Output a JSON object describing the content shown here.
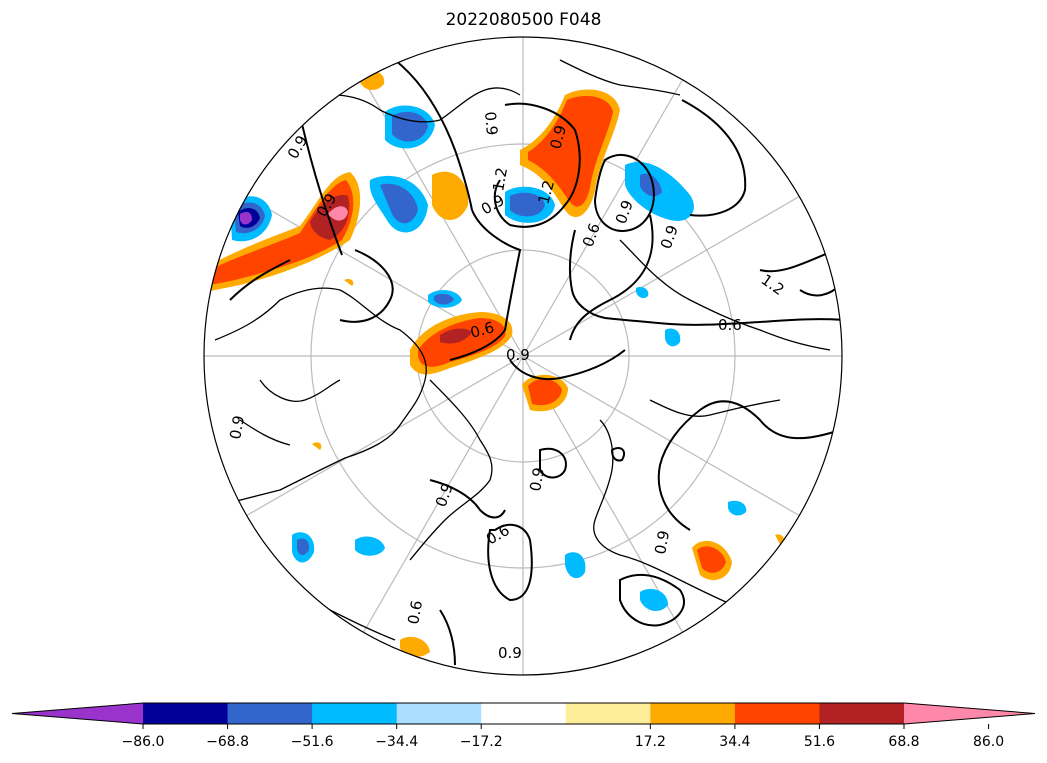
{
  "title": "2022080500 F048",
  "colorbar": {
    "colors": [
      "#9933cc",
      "#000099",
      "#3366cc",
      "#00bbff",
      "#aaddff",
      "#ffffff",
      "#ffee99",
      "#ffaa00",
      "#ff4400",
      "#b22222",
      "#ff88aa"
    ],
    "tick_labels": [
      "−86.0",
      "−68.8",
      "−51.6",
      "−34.4",
      "−17.2",
      "17.2",
      "34.4",
      "51.6",
      "68.8",
      "86.0"
    ]
  },
  "contour_labels": [
    "0.9",
    "0.9",
    "0.9",
    "0.9",
    "0.9",
    "0.9",
    "0.9",
    "0.9",
    "0.9",
    "0.9",
    "1.2",
    "1.2",
    "1.2",
    "0.6",
    "0.6",
    "0.6",
    "0.6",
    "0.6",
    "0.9",
    "0.9",
    "0.9"
  ],
  "map": {
    "projection": "north-polar-stereographic",
    "fill_variable_range": [
      -86.0,
      86.0
    ],
    "contour_levels": [
      0.6,
      0.9,
      1.2
    ]
  }
}
